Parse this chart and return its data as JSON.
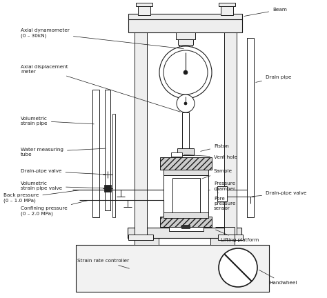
{
  "bg_color": "#ffffff",
  "line_color": "#1a1a1a",
  "labels": {
    "beam": "Beam",
    "axial_dyn": "Axial dynamometer\n(0 – 30kN)",
    "axial_disp": "Axial displacement\nmeter",
    "vol_strain": "Volumetric\nstrain pipe",
    "water_meas": "Water measuring\ntube",
    "drain_valve": "Drain-pipe valve",
    "vol_valve": "Volumetric\nstrain pipe valve",
    "back_press": "Back pressure\n(0 – 1.0 MPa)",
    "confine_press": "Confining pressure\n(0 – 2.0 MPa)",
    "piston": "Piston",
    "vent": "Vent hole",
    "sample": "Sample",
    "press_chamber": "Pressure\nchamber",
    "pore_press": "Pore\npressure\nsensor",
    "drain_pipe_r": "Drain pipe",
    "drain_valve_r": "Drain-pipe valve",
    "lifting": "Lifting platform",
    "strain_ctrl": "Strain rate controller",
    "handwheel": "Handwheel"
  },
  "figsize": [
    4.74,
    4.32
  ],
  "dpi": 100
}
